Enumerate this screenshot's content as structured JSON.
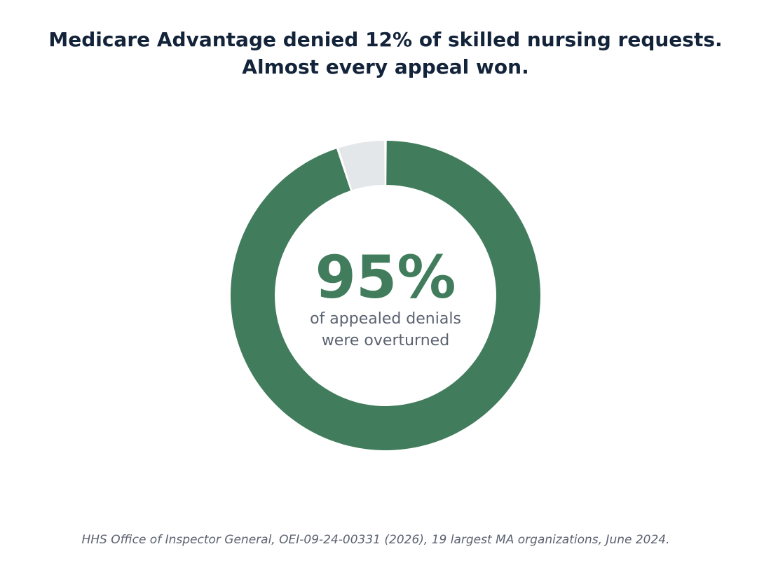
{
  "chart_data": {
    "type": "pie",
    "title": [
      "Medicare Advantage denied 12% of skilled nursing requests.",
      "Almost every appeal won."
    ],
    "slices": [
      {
        "label": "",
        "value": 95,
        "color": "#417c5c"
      },
      {
        "label": "",
        "value": 5,
        "color": "#e4e7ea"
      }
    ],
    "center": {
      "value": "95%",
      "caption": [
        "of appealed denials",
        "were overturned"
      ]
    },
    "source": "HHS Office of Inspector General, OEI-09-24-00331 (2026), 19 largest MA organizations, June 2024."
  }
}
